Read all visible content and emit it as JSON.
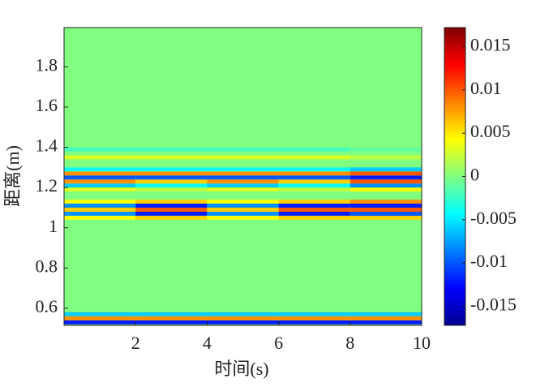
{
  "chart_data": {
    "type": "heatmap",
    "x_label": "时间(s)",
    "y_label": "距离(m)",
    "x": [
      1,
      3,
      5,
      7,
      9
    ],
    "y": [
      0.53,
      0.55,
      0.57,
      1.05,
      1.07,
      1.09,
      1.11,
      1.13,
      1.19,
      1.21,
      1.23,
      1.25,
      1.27,
      1.29,
      1.35,
      1.39
    ],
    "z": [
      [
        -0.012,
        -0.012,
        -0.012,
        -0.012,
        -0.012
      ],
      [
        0.008,
        0.008,
        0.008,
        0.008,
        0.008
      ],
      [
        -0.006,
        -0.006,
        -0.006,
        -0.006,
        -0.006
      ],
      [
        0.004,
        0.006,
        0.004,
        0.006,
        0.006
      ],
      [
        -0.008,
        -0.012,
        -0.008,
        -0.012,
        -0.01
      ],
      [
        0.006,
        0.01,
        0.006,
        0.01,
        0.01
      ],
      [
        -0.008,
        -0.012,
        -0.008,
        -0.012,
        -0.012
      ],
      [
        0.004,
        0.006,
        0.004,
        0.006,
        0.008
      ],
      [
        0.003,
        0.002,
        0.003,
        0.002,
        0.004
      ],
      [
        -0.006,
        -0.004,
        -0.006,
        -0.004,
        -0.008
      ],
      [
        0.008,
        0.006,
        0.008,
        0.006,
        0.01
      ],
      [
        -0.01,
        -0.01,
        -0.01,
        -0.01,
        -0.012
      ],
      [
        0.008,
        0.008,
        0.008,
        0.008,
        0.01
      ],
      [
        -0.004,
        -0.004,
        -0.004,
        -0.004,
        -0.006
      ],
      [
        0.003,
        0.003,
        0.003,
        0.003,
        0.002
      ],
      [
        -0.002,
        -0.002,
        -0.002,
        -0.002,
        -0.001
      ]
    ],
    "row_height": 0.02,
    "col_width": 2,
    "xlim": [
      0,
      10
    ],
    "ylim": [
      0.515,
      1.995
    ],
    "xticks": [
      2,
      4,
      6,
      8,
      10
    ],
    "yticks": [
      0.6,
      0.8,
      1,
      1.2,
      1.4,
      1.6,
      1.8
    ],
    "clim": [
      -0.0172,
      0.0172
    ],
    "cticks": [
      -0.015,
      -0.01,
      -0.005,
      0,
      0.005,
      0.01,
      0.015
    ],
    "colormap": "jet"
  }
}
